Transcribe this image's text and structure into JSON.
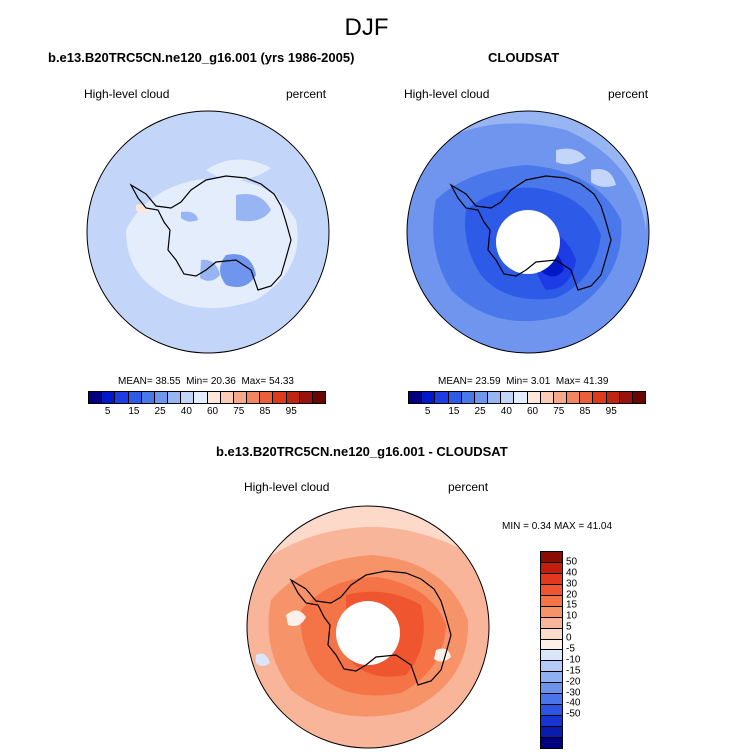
{
  "figure": {
    "title": "DJF"
  },
  "panels": [
    {
      "title": "b.e13.B20TRC5CN.ne120_g16.001 (yrs 1986-2005)",
      "left_label": "High-level cloud",
      "right_label": "percent",
      "stats": {
        "mean_label": "MEAN=",
        "mean": "38.55",
        "min_label": "Min=",
        "min": "20.36",
        "max_label": "Max=",
        "max": "54.33"
      }
    },
    {
      "title": "CLOUDSAT",
      "left_label": "High-level cloud",
      "right_label": "percent",
      "stats": {
        "mean_label": "MEAN=",
        "mean": "23.59",
        "min_label": "Min=",
        "min": "3.01",
        "max_label": "Max=",
        "max": "41.39"
      }
    },
    {
      "title": "b.e13.B20TRC5CN.ne120_g16.001 - CLOUDSAT",
      "left_label": "High-level cloud",
      "right_label": "percent",
      "stats_text": "MIN =   0.34 MAX =  41.04"
    }
  ],
  "colorbars": {
    "absolute": {
      "labels": [
        "5",
        "15",
        "25",
        "40",
        "60",
        "75",
        "85",
        "95"
      ],
      "colors": [
        "#00007f",
        "#0019c8",
        "#1e3ce6",
        "#2e5ae8",
        "#4a78ea",
        "#6f95ef",
        "#98b5f3",
        "#c3d6f9",
        "#e3edfc",
        "#fde7dc",
        "#fbcbb5",
        "#f8a98a",
        "#f3855f",
        "#ec5f38",
        "#dd3a1c",
        "#c22412",
        "#9a1309",
        "#6a0602"
      ]
    },
    "difference": {
      "labels": [
        "50",
        "40",
        "30",
        "20",
        "15",
        "10",
        "5",
        "0",
        "-5",
        "-10",
        "-15",
        "-20",
        "-30",
        "-40",
        "-50"
      ],
      "colors": [
        "#8a0d05",
        "#c21d0f",
        "#e2381d",
        "#ef5630",
        "#f47448",
        "#f79369",
        "#f9b59a",
        "#fcd9c9",
        "#fdf0ea",
        "#d9e6fb",
        "#b3cbf6",
        "#8eb0f1",
        "#6b93ec",
        "#4a74e9",
        "#2d55e4",
        "#1635d2",
        "#0a1cae",
        "#000080"
      ]
    }
  },
  "chart_data": [
    {
      "type": "heatmap",
      "title": "b.e13.B20TRC5CN.ne120_g16.001 (yrs 1986-2005)",
      "variable": "High-level cloud",
      "units": "percent",
      "mean": 38.55,
      "min": 20.36,
      "max": 54.33,
      "levels": [
        5,
        10,
        15,
        20,
        25,
        30,
        35,
        40,
        50,
        60,
        65,
        70,
        75,
        80,
        85,
        90,
        95
      ]
    },
    {
      "type": "heatmap",
      "title": "CLOUDSAT",
      "variable": "High-level cloud",
      "units": "percent",
      "mean": 23.59,
      "min": 3.01,
      "max": 41.39,
      "levels": [
        5,
        10,
        15,
        20,
        25,
        30,
        35,
        40,
        50,
        60,
        65,
        70,
        75,
        80,
        85,
        90,
        95
      ]
    },
    {
      "type": "heatmap",
      "title": "b.e13.B20TRC5CN.ne120_g16.001 - CLOUDSAT",
      "variable": "High-level cloud",
      "units": "percent",
      "min": 0.34,
      "max": 41.04,
      "levels": [
        -50,
        -40,
        -30,
        -20,
        -15,
        -10,
        -5,
        0,
        5,
        10,
        15,
        20,
        30,
        40,
        50
      ]
    }
  ]
}
